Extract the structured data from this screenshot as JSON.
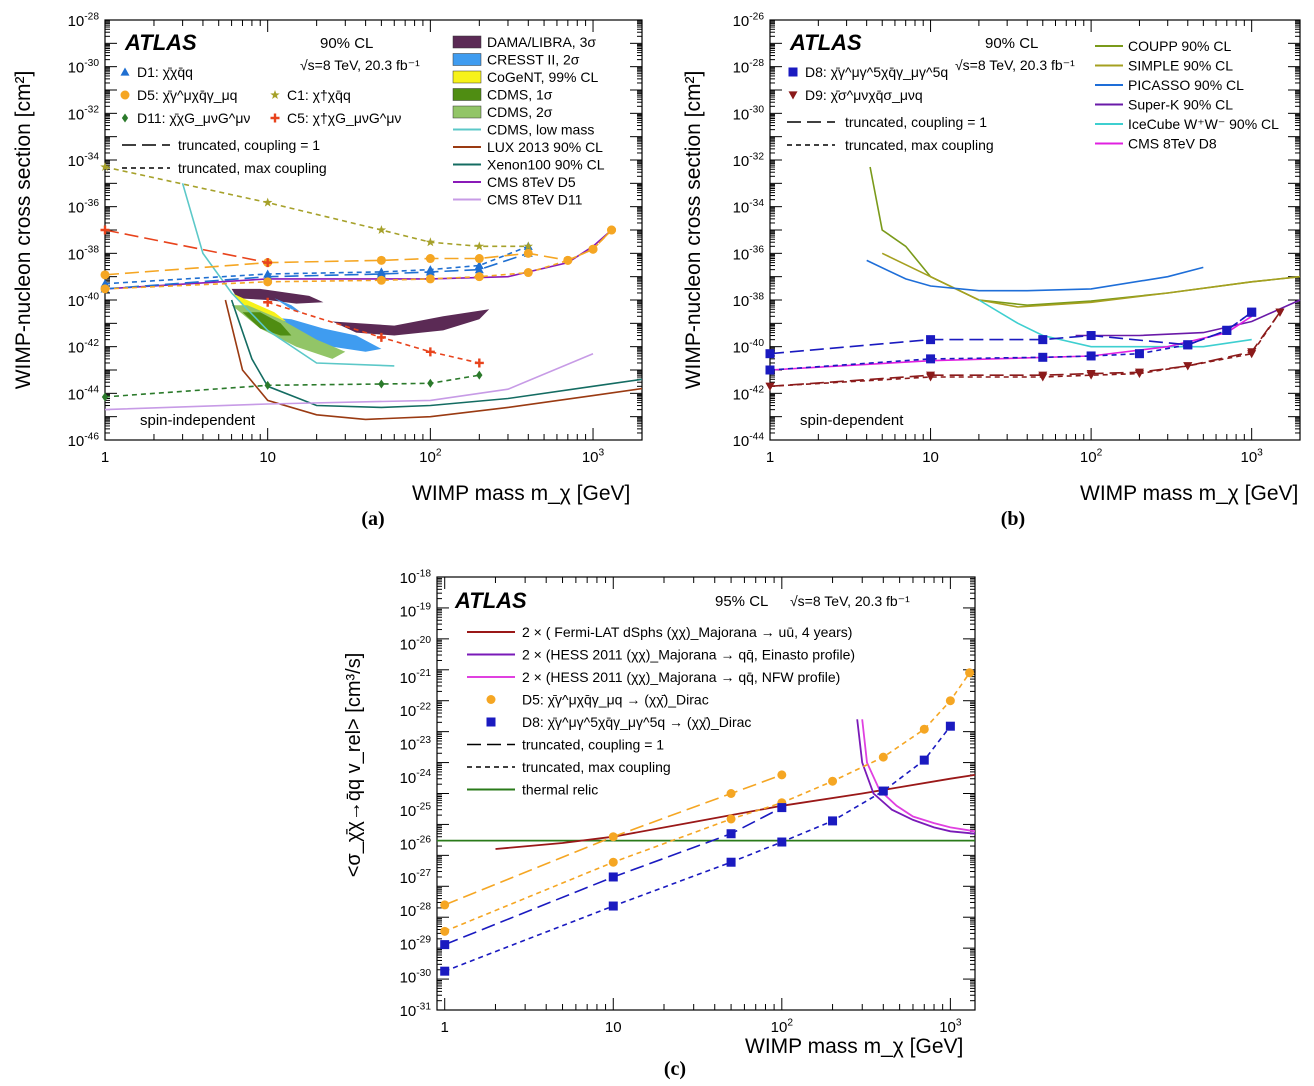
{
  "chart_data": [
    {
      "panel": "(a)",
      "type": "line",
      "xscale": "log",
      "yscale": "log",
      "xlim": [
        1,
        2000
      ],
      "ylim": [
        1e-46,
        1e-28
      ],
      "xlabel": "WIMP mass m_χ [GeV]",
      "ylabel": "WIMP-nucleon cross section [cm²]",
      "xticks": [
        "1",
        "10",
        "10^2",
        "10^3"
      ],
      "yticks": [
        "10^-46",
        "10^-44",
        "10^-42",
        "10^-40",
        "10^-38",
        "10^-36",
        "10^-34",
        "10^-32",
        "10^-30",
        "10^-28"
      ],
      "texts": {
        "atlas": "ATLAS",
        "cl": "90% CL",
        "energy": "√s=8 TeV, 20.3 fb⁻¹",
        "region": "spin-independent",
        "style_solid": "truncated, coupling = 1",
        "style_dashed": "truncated, max coupling"
      },
      "legend_left": [
        {
          "label": "D1: χ̄χq̄q",
          "marker": "triangle",
          "color": "#1f6fd1"
        },
        {
          "label": "D5: χ̄γ^μχq̄γ_μq",
          "marker": "circle",
          "color": "#f5a623"
        },
        {
          "label": "D11: χ̄χG_μνG^μν",
          "marker": "diamond",
          "color": "#2b7a2b"
        },
        {
          "label": "C1: χ†χq̄q",
          "marker": "star",
          "color": "#a6a12a"
        },
        {
          "label": "C5: χ†χG_μνG^μν",
          "marker": "cross",
          "color": "#e8431c"
        }
      ],
      "legend_right": [
        {
          "label": "DAMA/LIBRA, 3σ",
          "kind": "box",
          "color": "#5b2a55"
        },
        {
          "label": "CRESST II, 2σ",
          "kind": "box",
          "color": "#3f9cf0"
        },
        {
          "label": "CoGeNT, 99% CL",
          "kind": "box",
          "color": "#f7f21a"
        },
        {
          "label": "CDMS, 1σ",
          "kind": "box",
          "color": "#4f8d12"
        },
        {
          "label": "CDMS, 2σ",
          "kind": "box",
          "color": "#92c567"
        },
        {
          "label": "CDMS, low mass",
          "kind": "line",
          "color": "#5cc8c8"
        },
        {
          "label": "LUX 2013 90% CL",
          "kind": "line",
          "color": "#9a3a12"
        },
        {
          "label": "Xenon100 90% CL",
          "kind": "line",
          "color": "#146c62"
        },
        {
          "label": "CMS 8TeV D5",
          "kind": "line",
          "color": "#8a1ab8"
        },
        {
          "label": "CMS 8TeV D11",
          "kind": "line",
          "color": "#c79be6"
        }
      ],
      "series": [
        {
          "name": "D1: χ̄χq̄q",
          "color": "#1f6fd1",
          "marker": "triangle",
          "coupling1": {
            "x": [
              1,
              10,
              50,
              100,
              200,
              400
            ],
            "y": [
              3e-40,
              1e-39,
              1.3e-39,
              1.6e-39,
              2e-39,
              1e-38
            ]
          },
          "maxcoupling": {
            "x": [
              1,
              10,
              50,
              100,
              200,
              400
            ],
            "y": [
              5e-40,
              1.3e-39,
              1.6e-39,
              2e-39,
              3e-39,
              2e-38
            ]
          }
        },
        {
          "name": "D5: χ̄γ^μχq̄γ_μq",
          "color": "#f5a623",
          "marker": "circle",
          "coupling1": {
            "x": [
              1,
              10,
              50,
              100,
              200,
              400,
              700,
              1000,
              1300
            ],
            "y": [
              1.2e-39,
              4e-39,
              5e-39,
              6e-39,
              6e-39,
              1e-38,
              5e-39,
              1.5e-38,
              1e-37
            ]
          },
          "maxcoupling": {
            "x": [
              1,
              10,
              50,
              100,
              200,
              400,
              700,
              1000,
              1300
            ],
            "y": [
              3e-40,
              6e-40,
              7e-40,
              8e-40,
              1e-39,
              1.5e-39,
              5e-39,
              1.5e-38,
              1e-37
            ]
          }
        },
        {
          "name": "D11: χ̄χG_μνG^μν",
          "color": "#2b7a2b",
          "marker": "diamond",
          "maxcoupling": {
            "x": [
              1,
              10,
              50,
              100,
              200
            ],
            "y": [
              7e-45,
              2.2e-44,
              2.5e-44,
              2.7e-44,
              6e-44
            ]
          }
        },
        {
          "name": "C1: χ†χq̄q",
          "color": "#a6a12a",
          "marker": "star",
          "maxcoupling": {
            "x": [
              1,
              10,
              50,
              100,
              200,
              400
            ],
            "y": [
              5e-35,
              1.5e-36,
              1e-37,
              3e-38,
              2e-38,
              2e-38
            ]
          }
        },
        {
          "name": "C5: χ†χG_μνG^μν",
          "color": "#e8431c",
          "marker": "cross",
          "coupling1": {
            "x": [
              1,
              10
            ],
            "y": [
              1e-37,
              4e-39
            ]
          },
          "maxcoupling": {
            "x": [
              10,
              50,
              100,
              200
            ],
            "y": [
              8e-41,
              2.5e-42,
              6e-43,
              2e-43
            ]
          }
        },
        {
          "name": "CDMS, low mass",
          "color": "#5cc8c8",
          "x": [
            3,
            4,
            6,
            10,
            20,
            60
          ],
          "y": [
            1e-35,
            1e-38,
            2e-40,
            5e-42,
            2e-43,
            1.5e-43
          ]
        },
        {
          "name": "LUX 2013 90% CL",
          "color": "#9a3a12",
          "x": [
            5.5,
            7,
            10,
            20,
            40,
            100,
            300,
            1000,
            2000
          ],
          "y": [
            1e-40,
            1e-43,
            5e-45,
            1.2e-45,
            7.6e-46,
            1e-45,
            2.5e-45,
            8e-45,
            1.6e-44
          ]
        },
        {
          "name": "Xenon100 90% CL",
          "color": "#146c62",
          "x": [
            6,
            8,
            10,
            20,
            50,
            100,
            300,
            1000,
            2000
          ],
          "y": [
            1e-40,
            3e-43,
            2e-44,
            3e-45,
            2.5e-45,
            3e-45,
            6e-45,
            2e-44,
            4e-44
          ]
        },
        {
          "name": "CMS 8TeV D5",
          "color": "#8a1ab8",
          "x": [
            1,
            10,
            100,
            300,
            700,
            1000,
            1300
          ],
          "y": [
            3e-40,
            8e-40,
            8e-40,
            1e-39,
            4e-39,
            2e-38,
            1e-37
          ]
        },
        {
          "name": "CMS 8TeV D11",
          "color": "#c79be6",
          "x": [
            1,
            10,
            100,
            300,
            1000
          ],
          "y": [
            2e-45,
            3.5e-45,
            5e-45,
            1.5e-44,
            5e-43
          ]
        }
      ]
    },
    {
      "panel": "(b)",
      "type": "line",
      "xscale": "log",
      "yscale": "log",
      "xlim": [
        1,
        2000
      ],
      "ylim": [
        1e-44,
        1e-26
      ],
      "xlabel": "WIMP mass m_χ [GeV]",
      "ylabel": "WIMP-nucleon cross section [cm²]",
      "xticks": [
        "1",
        "10",
        "10^2",
        "10^3"
      ],
      "yticks": [
        "10^-44",
        "10^-42",
        "10^-40",
        "10^-38",
        "10^-36",
        "10^-34",
        "10^-32",
        "10^-30",
        "10^-28",
        "10^-26"
      ],
      "texts": {
        "atlas": "ATLAS",
        "cl": "90% CL",
        "energy": "√s=8 TeV, 20.3 fb⁻¹",
        "region": "spin-dependent",
        "style_solid": "truncated, coupling = 1",
        "style_dashed": "truncated, max coupling"
      },
      "legend_left": [
        {
          "label": "D8: χ̄γ^μγ^5χq̄γ_μγ^5q",
          "marker": "square",
          "color": "#1a1ac0"
        },
        {
          "label": "D9: χ̄σ^μνχq̄σ_μνq",
          "marker": "triangle-down",
          "color": "#8b1a1a"
        }
      ],
      "legend_right": [
        {
          "label": "COUPP 90% CL",
          "color": "#7a9a1a"
        },
        {
          "label": "SIMPLE 90% CL",
          "color": "#a5a020"
        },
        {
          "label": "PICASSO 90% CL",
          "color": "#1e6ed8"
        },
        {
          "label": "Super-K 90% CL",
          "color": "#6a1aa8"
        },
        {
          "label": "IceCube W⁺W⁻ 90% CL",
          "color": "#3ecfd0"
        },
        {
          "label": "CMS 8TeV D8",
          "color": "#e020e0"
        }
      ],
      "series": [
        {
          "name": "D8: χ̄γ^μγ^5χq̄γ_μγ^5q",
          "color": "#1a1ac0",
          "marker": "square",
          "coupling1": {
            "x": [
              1,
              10,
              50,
              100,
              400,
              700,
              1000
            ],
            "y": [
              5e-41,
              2e-40,
              2e-40,
              3e-40,
              1.2e-40,
              5e-40,
              3e-39
            ]
          },
          "maxcoupling": {
            "x": [
              1,
              10,
              50,
              100,
              200,
              400,
              700,
              1000
            ],
            "y": [
              1e-41,
              3e-41,
              3.5e-41,
              4e-41,
              5e-41,
              1.2e-40,
              5e-40,
              3e-39
            ]
          }
        },
        {
          "name": "D9: χ̄σ^μνχq̄σ_μνq",
          "color": "#8b1a1a",
          "marker": "triangle-down",
          "coupling1": {
            "x": [
              1,
              10,
              50,
              100,
              200,
              400,
              1000,
              1500
            ],
            "y": [
              2e-42,
              6e-42,
              6e-42,
              7e-42,
              8e-42,
              1.5e-41,
              6e-41,
              3e-39
            ]
          },
          "maxcoupling": {
            "x": [
              1,
              10,
              50,
              100,
              200,
              400,
              1000,
              1500
            ],
            "y": [
              2e-42,
              5e-42,
              5e-42,
              6e-42,
              7e-42,
              1.5e-41,
              5e-41,
              3e-39
            ]
          }
        },
        {
          "name": "COUPP 90% CL",
          "color": "#7a9a1a",
          "x": [
            4.2,
            5,
            7,
            10,
            20,
            40,
            100,
            300,
            1000,
            2000
          ],
          "y": [
            5e-33,
            1e-35,
            2e-36,
            1e-37,
            1e-38,
            6e-39,
            9e-39,
            2e-38,
            6e-38,
            1e-37
          ]
        },
        {
          "name": "SIMPLE 90% CL",
          "color": "#a5a020",
          "x": [
            5,
            10,
            20,
            35,
            100,
            300,
            1000,
            2000
          ],
          "y": [
            1e-36,
            1e-37,
            1e-38,
            5e-39,
            8e-39,
            2e-38,
            6e-38,
            1e-37
          ]
        },
        {
          "name": "PICASSO 90% CL",
          "color": "#1e6ed8",
          "x": [
            4,
            7,
            10,
            20,
            40,
            100,
            300,
            500
          ],
          "y": [
            5e-37,
            8e-38,
            4e-38,
            2.5e-38,
            2.5e-38,
            3e-38,
            1e-37,
            2.5e-37
          ]
        },
        {
          "name": "Super-K 90% CL",
          "color": "#6a1aa8",
          "x": [
            80,
            200,
            500,
            1000,
            2000
          ],
          "y": [
            3e-40,
            3e-40,
            4e-40,
            1.2e-39,
            1e-38
          ]
        },
        {
          "name": "IceCube W⁺W⁻ 90% CL",
          "color": "#3ecfd0",
          "x": [
            20,
            35,
            50,
            100,
            200,
            500,
            1000
          ],
          "y": [
            1e-38,
            1e-39,
            3e-40,
            1e-40,
            1e-40,
            1e-40,
            2e-40
          ]
        },
        {
          "name": "CMS 8TeV D8",
          "color": "#e020e0",
          "x": [
            1,
            10,
            100,
            300,
            700,
            1000
          ],
          "y": [
            1e-41,
            2.5e-41,
            4e-41,
            1e-40,
            4e-40,
            2e-39
          ]
        }
      ]
    },
    {
      "panel": "(c)",
      "type": "line",
      "xscale": "log",
      "yscale": "log",
      "xlim": [
        0.9,
        1400
      ],
      "ylim": [
        1e-31,
        1e-17
      ],
      "xlabel": "WIMP mass m_χ [GeV]",
      "ylabel": "<σ_χ̄χ→q̄q v_rel> [cm³/s]",
      "xticks": [
        "1",
        "10",
        "10^2",
        "10^3"
      ],
      "yticks": [
        "10^-31",
        "10^-30",
        "10^-29",
        "10^-28",
        "10^-27",
        "10^-26",
        "10^-25",
        "10^-24",
        "10^-23",
        "10^-22",
        "10^-21",
        "10^-20",
        "10^-19",
        "10^-18"
      ],
      "texts": {
        "atlas": "ATLAS",
        "cl": "95% CL",
        "energy": "√s=8 TeV, 20.3 fb⁻¹"
      },
      "legend": [
        {
          "label": "2 × ( Fermi-LAT dSphs (χχ)_Majorana → uū, 4 years)",
          "kind": "line",
          "color": "#9a1818"
        },
        {
          "label": "2 × (HESS 2011 (χχ)_Majorana → qq̄, Einasto profile)",
          "kind": "line",
          "color": "#7a1ab8"
        },
        {
          "label": "2 × (HESS 2011 (χχ)_Majorana → qq̄, NFW profile)",
          "kind": "line",
          "color": "#e040e0"
        },
        {
          "label": "D5: χ̄γ^μχq̄γ_μq → (χχ̄)_Dirac",
          "kind": "circle",
          "color": "#f5a623"
        },
        {
          "label": "D8: χ̄γ^μγ^5χq̄γ_μγ^5q → (χχ̄)_Dirac",
          "kind": "square",
          "color": "#1a1ac0"
        },
        {
          "label": "truncated, coupling = 1",
          "kind": "longdash",
          "color": "#000000"
        },
        {
          "label": "truncated, max coupling",
          "kind": "shortdash",
          "color": "#000000"
        },
        {
          "label": "thermal relic",
          "kind": "line",
          "color": "#2a7a1a"
        }
      ],
      "series": [
        {
          "name": "D5 coupling = 1",
          "color": "#f5a623",
          "x": [
            1,
            10,
            50,
            100
          ],
          "y": [
            2.5e-28,
            4e-26,
            1e-24,
            4e-24
          ]
        },
        {
          "name": "D5 max coupling",
          "color": "#f5a623",
          "x": [
            1,
            10,
            50,
            100,
            200,
            400,
            700,
            1000,
            1300
          ],
          "y": [
            3.5e-29,
            6e-27,
            1.5e-25,
            5e-25,
            2.5e-24,
            1.5e-23,
            1.2e-22,
            1e-21,
            8e-21
          ]
        },
        {
          "name": "D8 coupling = 1",
          "color": "#1a1ac0",
          "x": [
            1,
            10,
            50,
            100
          ],
          "y": [
            1.3e-29,
            2e-27,
            5e-26,
            3.5e-25
          ]
        },
        {
          "name": "D8 max coupling",
          "color": "#1a1ac0",
          "x": [
            1,
            10,
            50,
            100,
            200,
            400,
            700,
            1000
          ],
          "y": [
            1.8e-30,
            2.3e-28,
            6e-27,
            2.7e-26,
            1.3e-25,
            1.2e-24,
            1.2e-23,
            1.5e-22
          ]
        },
        {
          "name": "Fermi-LAT dSphs",
          "color": "#9a1818",
          "x": [
            2,
            5,
            10,
            30,
            100,
            300,
            1000,
            1400
          ],
          "y": [
            1.6e-26,
            2.5e-26,
            4e-26,
            1.2e-25,
            4e-25,
            1e-24,
            3e-24,
            4e-24
          ]
        },
        {
          "name": "HESS 2011 Einasto",
          "color": "#7a1ab8",
          "x": [
            280,
            300,
            350,
            450,
            600,
            800,
            1000,
            1400
          ],
          "y": [
            2.5e-22,
            1e-23,
            1e-24,
            3e-25,
            1.4e-25,
            8e-26,
            6e-26,
            5e-26
          ]
        },
        {
          "name": "HESS 2011 NFW",
          "color": "#e040e0",
          "x": [
            300,
            320,
            380,
            480,
            600,
            800,
            1000,
            1400
          ],
          "y": [
            2.5e-22,
            1e-23,
            1.3e-24,
            4e-25,
            1.8e-25,
            1.1e-25,
            8e-26,
            6e-26
          ]
        },
        {
          "name": "thermal relic",
          "color": "#2a7a1a",
          "x": [
            0.9,
            1400
          ],
          "y": [
            3e-26,
            3e-26
          ]
        }
      ]
    }
  ]
}
